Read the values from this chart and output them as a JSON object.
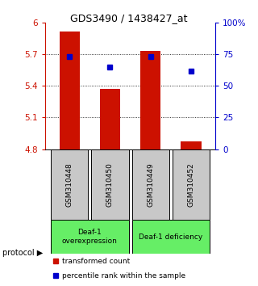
{
  "title": "GDS3490 / 1438427_at",
  "samples": [
    "GSM310448",
    "GSM310450",
    "GSM310449",
    "GSM310452"
  ],
  "bar_values": [
    5.92,
    5.37,
    5.73,
    4.87
  ],
  "percentile_values": [
    73,
    65,
    73,
    62
  ],
  "bar_color": "#cc1100",
  "dot_color": "#0000cc",
  "ylim": [
    4.8,
    6.0
  ],
  "yticks_left": [
    4.8,
    5.1,
    5.4,
    5.7,
    6.0
  ],
  "ytick_labels_left": [
    "4.8",
    "5.1",
    "5.4",
    "5.7",
    "6"
  ],
  "yticks_right": [
    0,
    25,
    50,
    75,
    100
  ],
  "ytick_labels_right": [
    "0",
    "25",
    "50",
    "75",
    "100%"
  ],
  "grid_values": [
    5.1,
    5.4,
    5.7
  ],
  "protocols": [
    {
      "label": "Deaf-1\noverexpression",
      "color": "#66ee66"
    },
    {
      "label": "Deaf-1 deficiency",
      "color": "#66ee66"
    }
  ],
  "bar_width": 0.5,
  "left_axis_color": "#cc1100",
  "right_axis_color": "#0000cc",
  "bg_plot": "#ffffff",
  "bg_label": "#c8c8c8",
  "legend_bar_label": "transformed count",
  "legend_dot_label": "percentile rank within the sample",
  "protocol_label": "protocol"
}
